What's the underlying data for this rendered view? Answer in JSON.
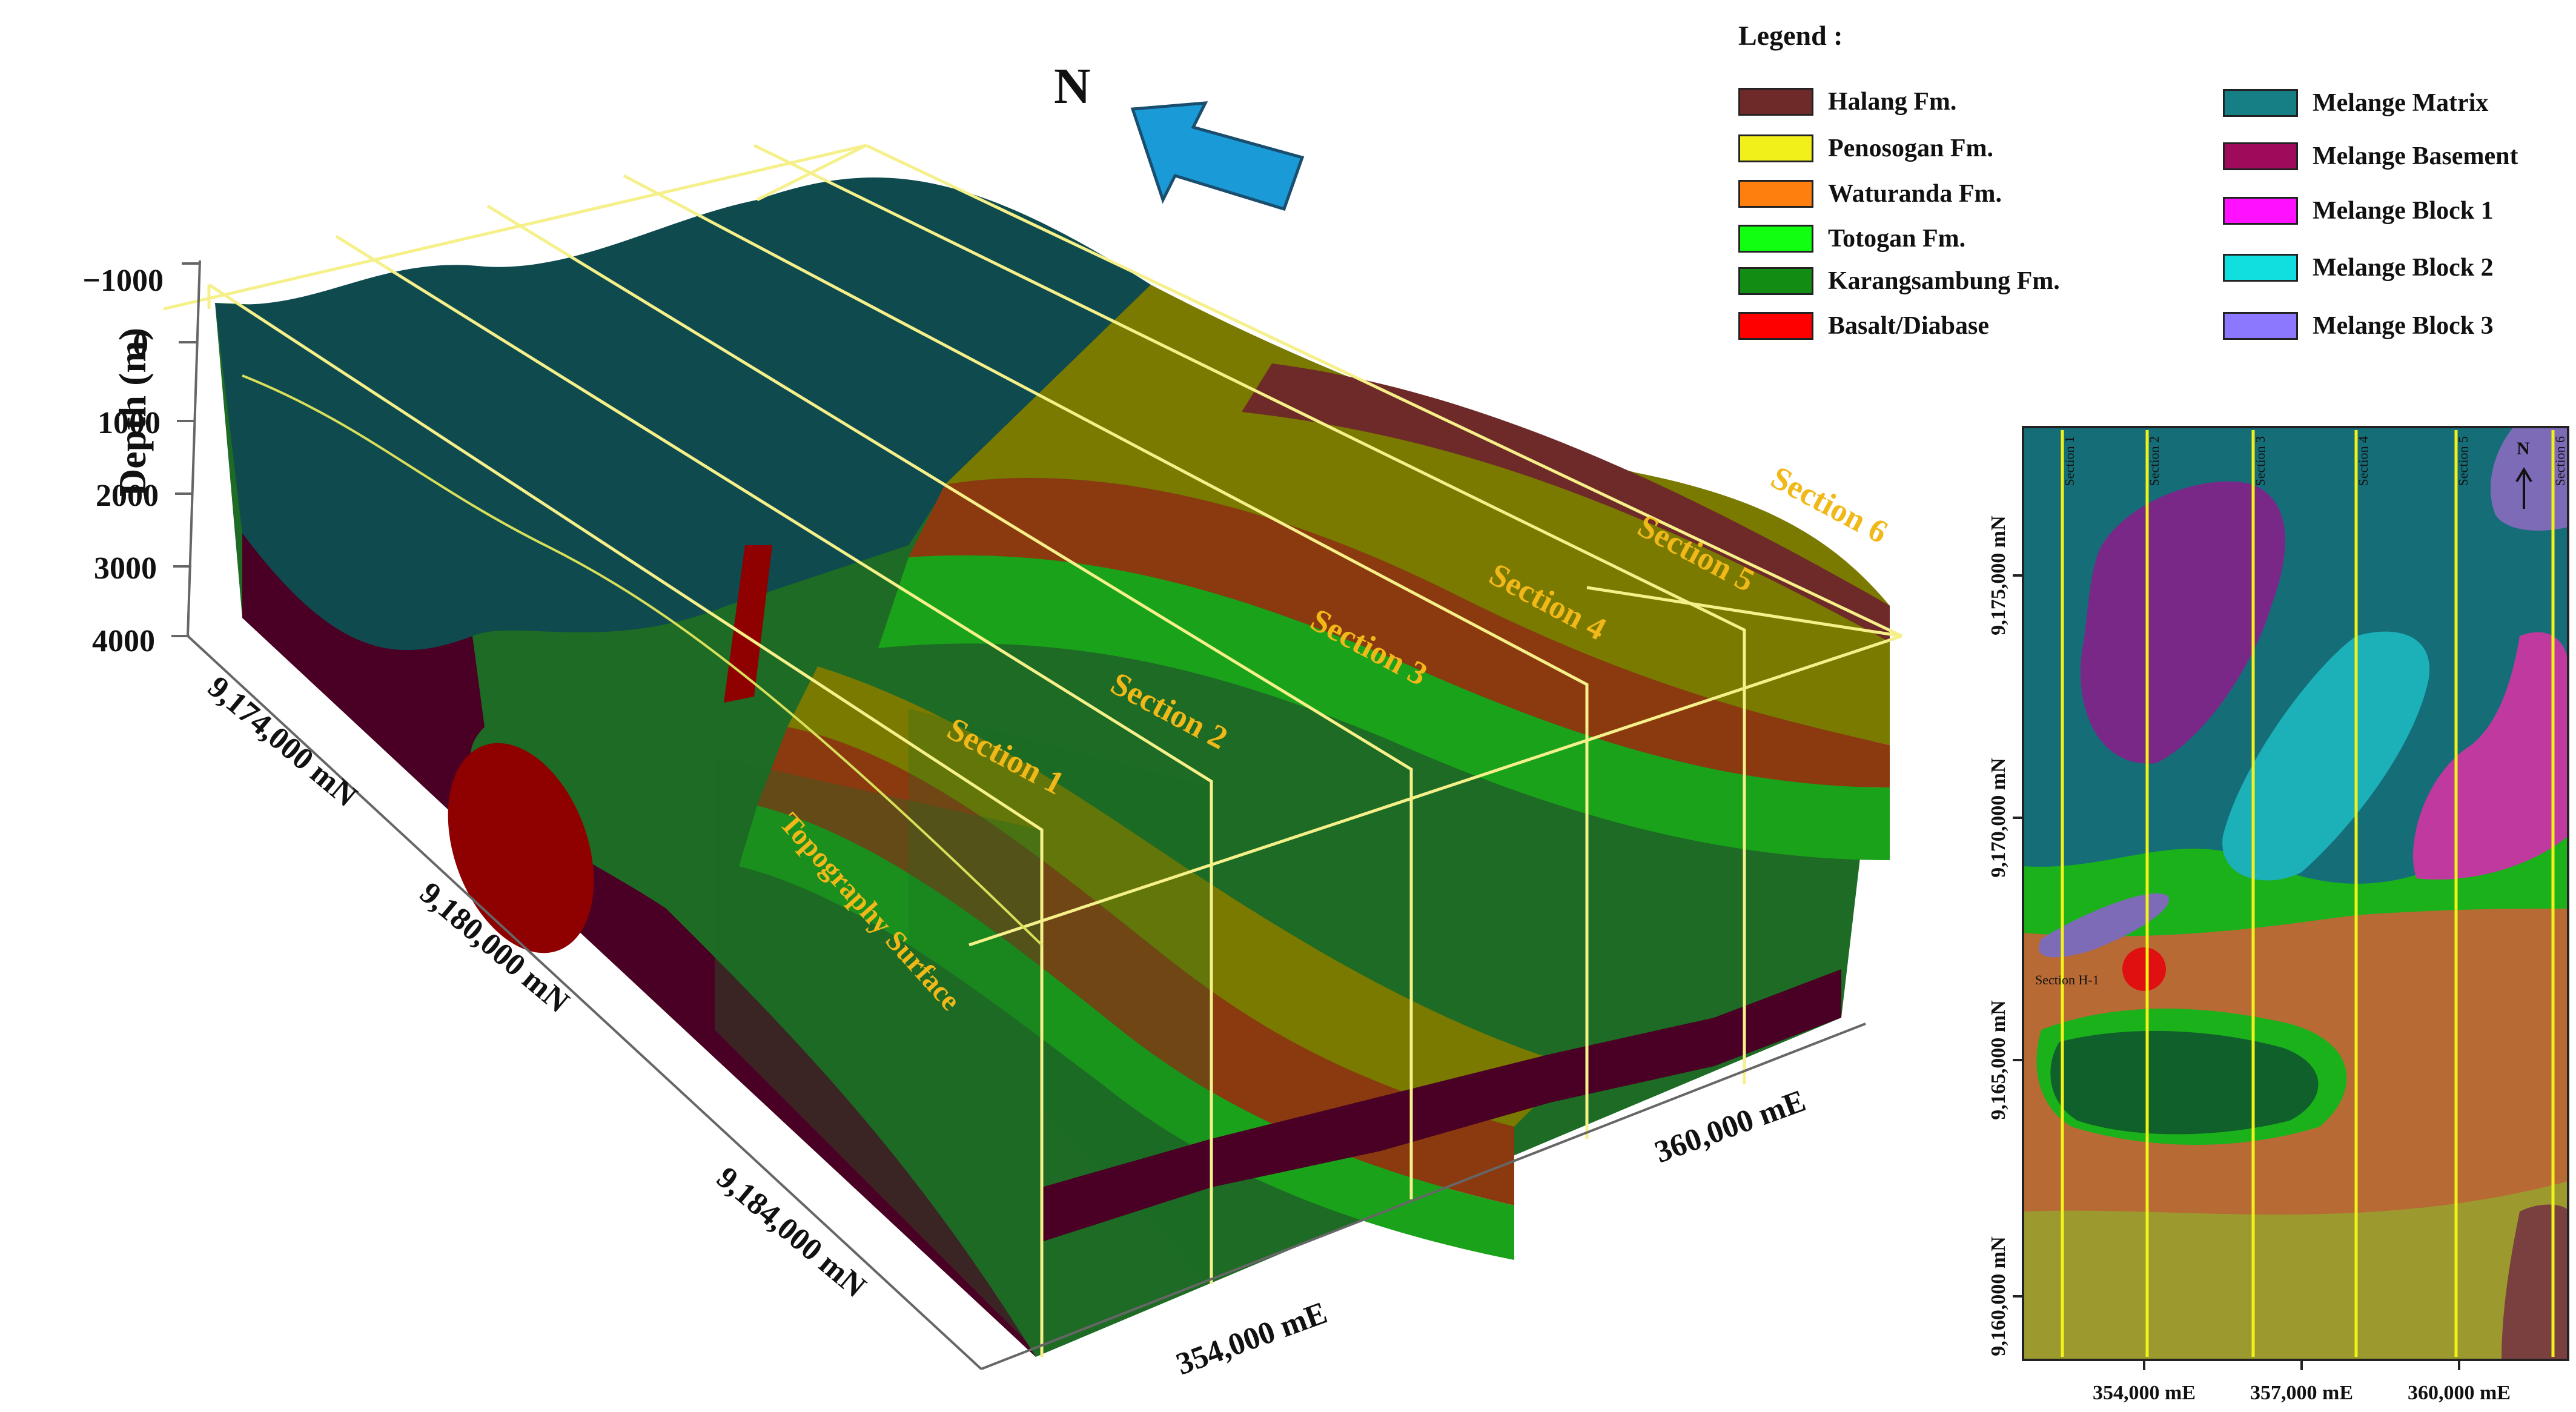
{
  "north_label": "N",
  "depth_axis": {
    "title": "Depth (m)",
    "ticks": [
      "−1000",
      "0",
      "1000",
      "2000",
      "3000",
      "4000"
    ]
  },
  "northing_axis": {
    "ticks": [
      "9,174,000 mN",
      "9,180,000 mN",
      "9,184,000 mN"
    ]
  },
  "easting_axis": {
    "ticks": [
      "354,000 mE",
      "360,000 mE"
    ]
  },
  "section_labels": [
    "Section 1",
    "Section 2",
    "Section 3",
    "Section 4",
    "Section 5",
    "Section 6"
  ],
  "topography_label": "Topography Surface",
  "legend": {
    "title": "Legend :",
    "items": [
      {
        "label": "Halang Fm.",
        "color": "#6e2a28"
      },
      {
        "label": "Penosogan Fm.",
        "color": "#f2f01a"
      },
      {
        "label": "Waturanda Fm.",
        "color": "#ff7f0e"
      },
      {
        "label": "Totogan Fm.",
        "color": "#11ff11"
      },
      {
        "label": "Karangsambung Fm.",
        "color": "#138c13"
      },
      {
        "label": "Basalt/Diabase",
        "color": "#ff0000"
      },
      {
        "label": "Melange Matrix",
        "color": "#167f86"
      },
      {
        "label": "Melange Basement",
        "color": "#a00a5a"
      },
      {
        "label": "Melange Block 1",
        "color": "#ff11ff"
      },
      {
        "label": "Melange Block 2",
        "color": "#11dede"
      },
      {
        "label": "Melange Block 3",
        "color": "#8c78ff"
      }
    ]
  },
  "map": {
    "north_label": "N",
    "section_labels": [
      "Section 1",
      "Section 2",
      "Section 3",
      "Section 4",
      "Section 5",
      "Section 6"
    ],
    "section_h_label": "Section H-1",
    "x_ticks": [
      "354,000 mE",
      "357,000 mE",
      "360,000 mE"
    ],
    "y_ticks": [
      "9,175,000 mN",
      "9,170,000 mN",
      "9,165,000 mN",
      "9,160,000 mN"
    ]
  }
}
